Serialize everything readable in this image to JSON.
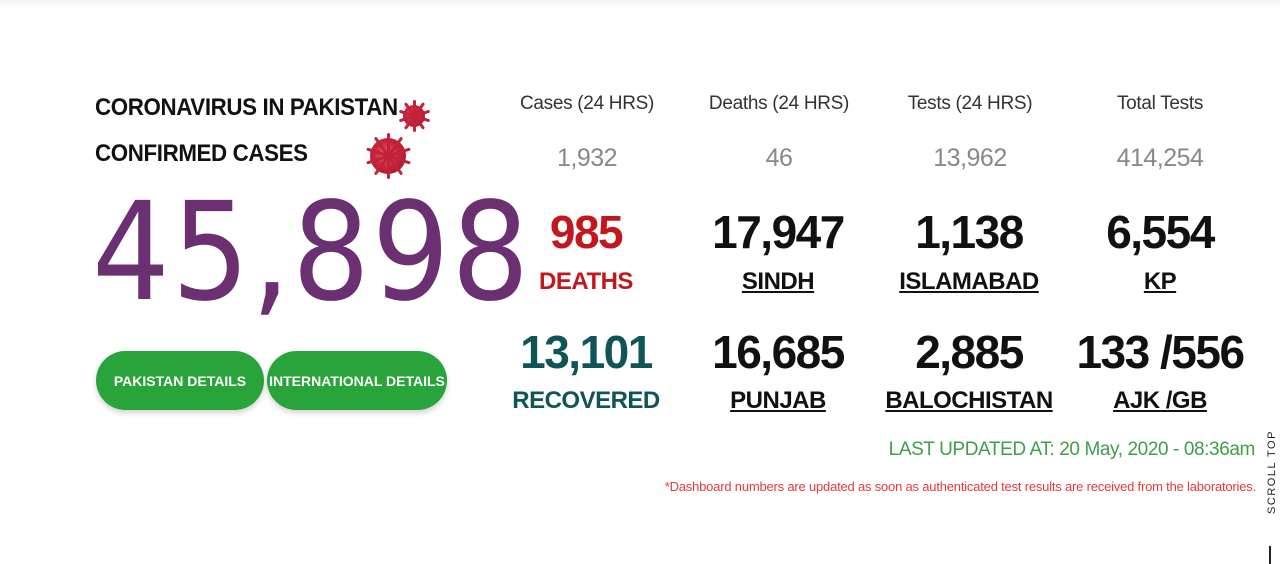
{
  "headline": {
    "line1": "CORONAVIRUS IN PAKISTAN",
    "line2": "CONFIRMED CASES"
  },
  "confirmed_cases": "45,898",
  "buttons": {
    "pakistan_details": "PAKISTAN DETAILS",
    "international_details": "INTERNATIONAL DETAILS"
  },
  "summary": {
    "cases_24h": {
      "label": "Cases (24 HRS)",
      "value": "1,932"
    },
    "deaths_24h": {
      "label": "Deaths (24 HRS)",
      "value": "46"
    },
    "tests_24h": {
      "label": "Tests (24 HRS)",
      "value": "13,962"
    },
    "total_tests": {
      "label": "Total Tests",
      "value": "414,254"
    }
  },
  "stats": {
    "deaths": {
      "value": "985",
      "label": "DEATHS"
    },
    "sindh": {
      "value": "17,947",
      "label": "SINDH"
    },
    "islamabad": {
      "value": "1,138",
      "label": "ISLAMABAD"
    },
    "kp": {
      "value": "6,554",
      "label": "KP"
    },
    "recovered": {
      "value": "13,101",
      "label": "RECOVERED"
    },
    "punjab": {
      "value": "16,685",
      "label": "PUNJAB"
    },
    "balochistan": {
      "value": "2,885",
      "label": "BALOCHISTAN"
    },
    "ajk_gb": {
      "value": "133 /556",
      "label": "AJK /GB"
    }
  },
  "last_updated": "LAST UPDATED AT: 20 May, 2020 - 08:36am",
  "disclaimer": "*Dashboard numbers are updated as soon as authenticated test results are received from the laboratories.",
  "scroll_top": "SCROLL TOP",
  "colors": {
    "primary_purple": "#6b3071",
    "button_green": "#29a43a",
    "deaths_red": "#c2171c",
    "recovered_teal": "#0f5457",
    "updated_green": "#3e9e49",
    "note_red": "#e23a3a"
  },
  "icons": [
    "coronavirus-icon"
  ]
}
